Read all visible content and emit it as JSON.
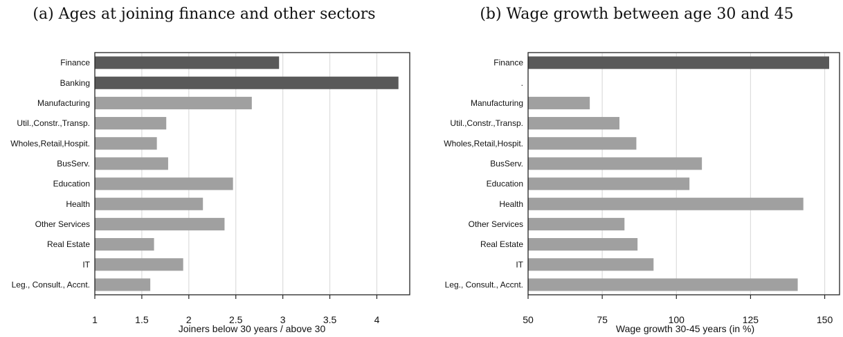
{
  "chart_data": [
    {
      "type": "bar",
      "orientation": "horizontal",
      "title": "(a) Ages at joining finance and other sectors",
      "xlabel": "Joiners below 30 years / above 30",
      "ylabel": "",
      "xlim": [
        1,
        4.35
      ],
      "xticks": [
        1,
        1.5,
        2,
        2.5,
        3,
        3.5,
        4
      ],
      "tick_labels": [
        "1",
        "1.5",
        "2",
        "2.5",
        "3",
        "3.5",
        "4"
      ],
      "grid": true,
      "categories": [
        "Finance",
        "Banking",
        "Manufacturing",
        "Util.,Constr.,Transp.",
        "Wholes,Retail,Hospit.",
        "BusServ.",
        "Education",
        "Health",
        "Other Services",
        "Real Estate",
        "IT",
        "Leg., Consult., Accnt."
      ],
      "values": [
        2.96,
        4.23,
        2.67,
        1.76,
        1.66,
        1.78,
        2.47,
        2.15,
        2.38,
        1.63,
        1.94,
        1.59
      ],
      "highlight": [
        true,
        true,
        false,
        false,
        false,
        false,
        false,
        false,
        false,
        false,
        false,
        false
      ]
    },
    {
      "type": "bar",
      "orientation": "horizontal",
      "title": "(b) Wage growth between age 30 and 45",
      "xlabel": "Wage growth 30-45 years (in %)",
      "ylabel": "",
      "xlim": [
        50,
        155
      ],
      "xticks": [
        50,
        75,
        100,
        125,
        150
      ],
      "tick_labels": [
        "50",
        "75",
        "100",
        "125",
        "150"
      ],
      "grid": true,
      "categories": [
        "Finance",
        ".",
        "Manufacturing",
        "Util.,Constr.,Transp.",
        "Wholes,Retail,Hospit.",
        "BusServ.",
        "Education",
        "Health",
        "Other Services",
        "Real Estate",
        "IT",
        "Leg., Consult., Accnt."
      ],
      "values": [
        151.5,
        null,
        70.8,
        80.8,
        86.5,
        108.6,
        104.4,
        142.8,
        82.5,
        86.9,
        92.3,
        140.9
      ],
      "highlight": [
        true,
        false,
        false,
        false,
        false,
        false,
        false,
        false,
        false,
        false,
        false,
        false
      ]
    }
  ],
  "colors": {
    "highlight_bar": "#595959",
    "other_bar": "#a0a0a0",
    "grid": "#dcdcdc",
    "frame": "#222222"
  }
}
